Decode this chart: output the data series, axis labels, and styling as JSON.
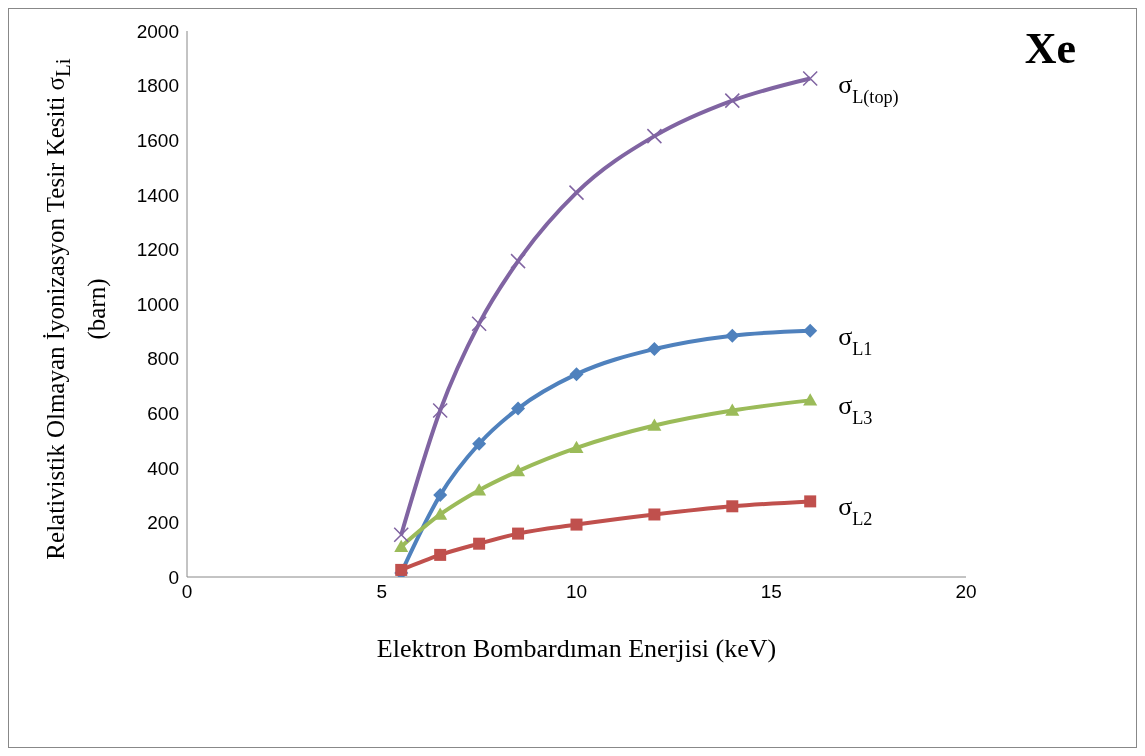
{
  "chart_data": {
    "type": "line",
    "title": "Xe",
    "xlabel": "Elektron Bombardıman Enerjisi (keV)",
    "ylabel": "Relativistik Olmayan İyonizasyon Tesir Kesiti σ$_{Li}$ (barn)",
    "x": [
      5.5,
      6.5,
      7.5,
      8.5,
      10,
      12,
      14,
      16
    ],
    "series": [
      {
        "name": "σ$_{L(top)}$",
        "color": "#8064a2",
        "marker": "cross",
        "values": [
          155,
          610,
          928,
          1157,
          1408,
          1615,
          1745,
          1826
        ]
      },
      {
        "name": "σ$_{L1}$",
        "color": "#4f81bd",
        "marker": "diamond",
        "values": [
          15,
          300,
          488,
          617,
          743,
          835,
          884,
          902
        ]
      },
      {
        "name": "σ$_{L3}$",
        "color": "#9bbb59",
        "marker": "triangle",
        "values": [
          111,
          229,
          318,
          388,
          473,
          555,
          610,
          647
        ]
      },
      {
        "name": "σ$_{L2}$",
        "color": "#c0504d",
        "marker": "square",
        "values": [
          26,
          81,
          122,
          159,
          192,
          229,
          259,
          277
        ]
      }
    ],
    "xlim": [
      0,
      20
    ],
    "xticks": [
      0,
      5,
      10,
      15,
      20
    ],
    "ylim": [
      0,
      2000
    ],
    "yticks": [
      0,
      200,
      400,
      600,
      800,
      1000,
      1200,
      1400,
      1600,
      1800,
      2000
    ],
    "grid": false,
    "legend": false
  }
}
